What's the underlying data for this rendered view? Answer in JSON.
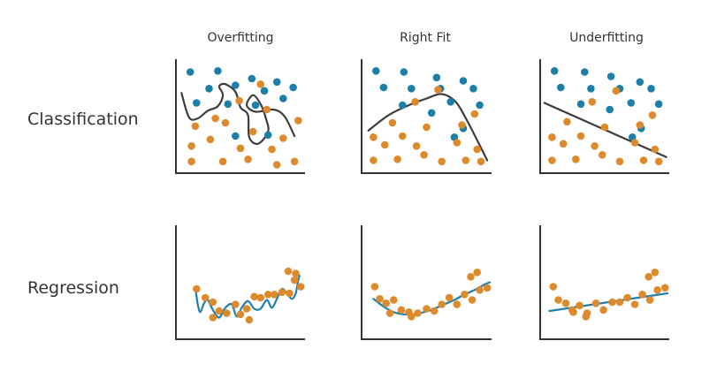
{
  "columns": [
    "Overfitting",
    "Right Fit",
    "Underfitting"
  ],
  "rows": [
    "Classification",
    "Regression"
  ],
  "colors": {
    "class_a": "#1b7fa8",
    "class_b": "#dd8a2c",
    "boundary": "#3c3c3c",
    "regression_line": "#1f7fae",
    "axis": "#333333",
    "text": "#333333"
  },
  "chart_data": [
    {
      "type": "scatter",
      "title": "Overfitting",
      "row": "Classification",
      "xlim": [
        0,
        10
      ],
      "ylim": [
        0,
        10
      ],
      "series": [
        {
          "name": "blue class",
          "x": [
            1.0,
            3.2,
            5.9,
            7.9,
            2.5,
            4.6,
            6.9,
            9.2,
            1.5,
            4.0,
            8.4,
            6.2,
            4.6,
            7.2
          ],
          "y": [
            9.0,
            9.1,
            8.4,
            8.1,
            7.5,
            7.8,
            7.3,
            7.6,
            6.2,
            6.1,
            6.6,
            6.0,
            3.2,
            3.3
          ]
        },
        {
          "name": "orange class",
          "x": [
            6.6,
            4.9,
            7.1,
            3.0,
            9.6,
            1.4,
            3.8,
            6.0,
            8.4,
            1.1,
            5.0,
            7.5,
            2.6,
            1.1,
            3.6,
            5.6,
            7.9,
            9.3
          ],
          "y": [
            7.9,
            6.4,
            5.6,
            4.8,
            4.6,
            4.1,
            4.4,
            3.6,
            3.0,
            2.3,
            2.1,
            2.0,
            2.9,
            0.9,
            0.9,
            1.1,
            0.6,
            0.9
          ]
        }
      ],
      "boundary": {
        "type": "overfit",
        "x": [
          0.3,
          0.9,
          1.6,
          2.4,
          3.2,
          3.6,
          3.3,
          3.8,
          4.6,
          5.0,
          5.6,
          5.7,
          6.4,
          7.2,
          7.0,
          6.6,
          6.0,
          5.5,
          6.2,
          7.6,
          8.5,
          9.3
        ],
        "y": [
          7.1,
          4.9,
          4.8,
          5.5,
          5.9,
          6.9,
          7.7,
          7.9,
          7.2,
          5.8,
          5.1,
          3.1,
          2.5,
          3.6,
          4.9,
          6.1,
          6.9,
          6.0,
          5.4,
          5.6,
          5.0,
          3.2
        ]
      }
    },
    {
      "type": "scatter",
      "title": "Right Fit",
      "row": "Classification",
      "xlim": [
        0,
        10
      ],
      "ylim": [
        0,
        10
      ],
      "series": [
        {
          "name": "blue class",
          "x": [
            1.0,
            3.2,
            5.8,
            7.9,
            1.6,
            3.8,
            6.1,
            8.7,
            3.1,
            6.9,
            9.2,
            5.4,
            7.9,
            7.2
          ],
          "y": [
            9.1,
            9.0,
            8.5,
            8.2,
            7.6,
            7.5,
            7.5,
            7.5,
            6.0,
            6.3,
            6.0,
            5.3,
            3.9,
            3.1
          ]
        },
        {
          "name": "orange class",
          "x": [
            5.9,
            4.1,
            8.8,
            2.3,
            5.0,
            7.8,
            0.8,
            3.1,
            1.7,
            4.2,
            7.4,
            9.0,
            0.8,
            2.7,
            4.8,
            6.2,
            8.1,
            9.3
          ],
          "y": [
            7.4,
            6.3,
            5.2,
            4.4,
            4.0,
            4.2,
            3.1,
            3.2,
            2.4,
            2.3,
            2.6,
            2.0,
            1.0,
            1.1,
            1.5,
            0.9,
            1.0,
            0.9
          ]
        }
      ],
      "boundary": {
        "type": "right_fit",
        "x": [
          0.4,
          2.0,
          3.6,
          5.0,
          6.2,
          7.3,
          8.2,
          9.1,
          9.8
        ],
        "y": [
          3.7,
          5.1,
          6.0,
          6.6,
          7.0,
          6.3,
          4.6,
          2.6,
          1.0
        ]
      }
    },
    {
      "type": "scatter",
      "title": "Underfitting",
      "row": "Classification",
      "xlim": [
        0,
        10
      ],
      "ylim": [
        0,
        10
      ],
      "series": [
        {
          "name": "blue class",
          "x": [
            1.0,
            3.4,
            5.5,
            7.8,
            1.5,
            3.9,
            6.2,
            8.7,
            3.1,
            7.1,
            9.3,
            5.4,
            7.9,
            7.2
          ],
          "y": [
            9.1,
            9.0,
            8.6,
            8.1,
            7.6,
            7.5,
            7.5,
            7.5,
            6.1,
            6.2,
            6.1,
            5.6,
            3.9,
            3.1
          ]
        },
        {
          "name": "orange class",
          "x": [
            5.9,
            4.0,
            8.8,
            2.0,
            5.0,
            7.8,
            0.8,
            3.1,
            1.7,
            4.2,
            7.4,
            9.0,
            0.8,
            2.7,
            4.8,
            6.2,
            8.1,
            9.3
          ],
          "y": [
            7.3,
            6.3,
            5.1,
            4.5,
            4.0,
            4.2,
            3.1,
            3.2,
            2.5,
            2.3,
            2.6,
            2.0,
            1.0,
            1.1,
            1.5,
            0.9,
            1.0,
            0.9
          ]
        }
      ],
      "boundary": {
        "type": "linear",
        "x": [
          0.2,
          9.9
        ],
        "y": [
          6.2,
          1.3
        ]
      }
    },
    {
      "type": "scatter",
      "title": "Overfitting",
      "row": "Regression",
      "xlim": [
        0,
        10
      ],
      "ylim": [
        0,
        10
      ],
      "series": [
        {
          "name": "data",
          "x": [
            1.5,
            2.2,
            2.8,
            3.3,
            3.9,
            4.6,
            5.0,
            5.5,
            6.1,
            6.6,
            7.2,
            7.7,
            8.3,
            8.9,
            9.3,
            9.8,
            9.4,
            8.8,
            2.8,
            5.7
          ],
          "y": [
            4.4,
            3.6,
            3.2,
            2.4,
            2.2,
            3.0,
            2.1,
            2.6,
            3.7,
            3.6,
            3.9,
            3.9,
            4.1,
            4.0,
            5.2,
            4.6,
            5.8,
            6.0,
            1.8,
            1.6
          ]
        }
      ],
      "fit": {
        "type": "overfit",
        "x": [
          1.4,
          1.6,
          1.8,
          2.1,
          2.4,
          2.8,
          3.3,
          3.8,
          4.3,
          4.7,
          5.1,
          5.6,
          6.1,
          6.6,
          7.1,
          7.5,
          7.9,
          8.3,
          8.7,
          9.1,
          9.4,
          9.6,
          9.7
        ],
        "y": [
          4.5,
          3.0,
          2.3,
          3.1,
          3.4,
          2.5,
          1.8,
          2.7,
          3.0,
          1.9,
          2.7,
          3.3,
          2.6,
          2.6,
          3.4,
          2.7,
          3.5,
          4.4,
          4.0,
          3.5,
          4.0,
          5.2,
          5.6
        ]
      }
    },
    {
      "type": "scatter",
      "title": "Right Fit",
      "row": "Regression",
      "xlim": [
        0,
        10
      ],
      "ylim": [
        0,
        10
      ],
      "series": [
        {
          "name": "data",
          "x": [
            0.9,
            1.3,
            1.8,
            2.4,
            3.0,
            3.6,
            4.3,
            5.0,
            5.6,
            6.2,
            6.8,
            7.4,
            8.0,
            8.6,
            9.2,
            9.8,
            9.0,
            8.5,
            2.1,
            3.8
          ],
          "y": [
            4.6,
            3.5,
            3.1,
            3.4,
            2.5,
            2.3,
            2.2,
            2.6,
            2.4,
            3.0,
            3.6,
            3.0,
            3.9,
            3.4,
            4.3,
            4.5,
            5.9,
            5.5,
            2.2,
            1.9
          ]
        }
      ],
      "fit": {
        "type": "quadratic",
        "x": [
          0.8,
          1.6,
          2.4,
          3.2,
          4.0,
          4.8,
          5.6,
          6.4,
          7.2,
          8.0,
          8.8,
          9.6,
          10.0
        ],
        "y": [
          3.5,
          2.8,
          2.3,
          2.1,
          2.1,
          2.3,
          2.6,
          3.0,
          3.4,
          3.9,
          4.3,
          4.8,
          5.0
        ]
      }
    },
    {
      "type": "scatter",
      "title": "Underfitting",
      "row": "Regression",
      "xlim": [
        0,
        10
      ],
      "ylim": [
        0,
        10
      ],
      "series": [
        {
          "name": "data",
          "x": [
            0.9,
            1.3,
            1.9,
            2.4,
            3.0,
            3.6,
            4.3,
            4.9,
            5.6,
            6.2,
            6.8,
            7.4,
            8.0,
            8.6,
            9.2,
            9.8,
            9.0,
            8.5,
            2.5,
            3.5
          ],
          "y": [
            4.6,
            3.4,
            3.1,
            2.5,
            2.9,
            2.2,
            3.1,
            2.5,
            3.2,
            3.2,
            3.6,
            3.0,
            3.9,
            3.4,
            4.3,
            4.5,
            5.9,
            5.5,
            2.3,
            1.9
          ]
        }
      ],
      "fit": {
        "type": "linear",
        "x": [
          0.6,
          10.0
        ],
        "y": [
          2.4,
          4.0
        ]
      }
    }
  ]
}
